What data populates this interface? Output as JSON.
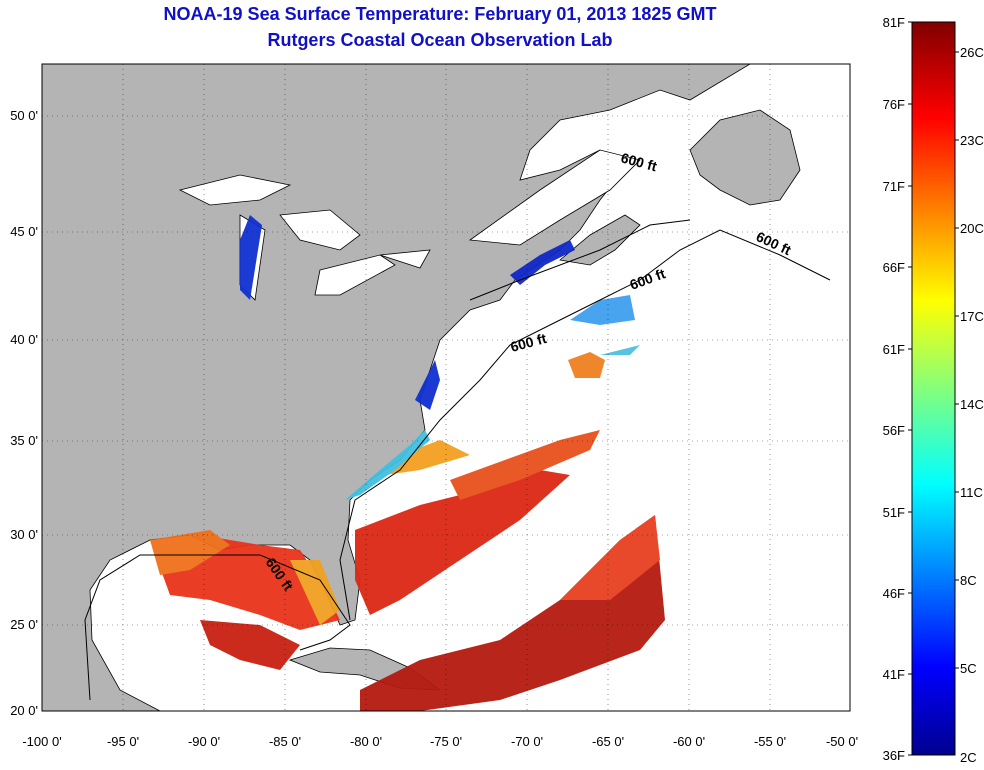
{
  "title": {
    "line1": "NOAA-19 Sea Surface Temperature:  February 01, 2013 1825 GMT",
    "line2": "Rutgers Coastal Ocean Observation Lab"
  },
  "map": {
    "lon_range": [
      -100,
      -50
    ],
    "lat_range": [
      20,
      52
    ],
    "x_ticks": [
      "-100 0'",
      "-95 0'",
      "-90 0'",
      "-85 0'",
      "-80 0'",
      "-75 0'",
      "-70 0'",
      "-65 0'",
      "-60 0'",
      "-55 0'",
      "-50 0'"
    ],
    "y_ticks": [
      "50 0'",
      "45 0'",
      "40 0'",
      "35 0'",
      "30 0'",
      "25 0'",
      "20 0'"
    ],
    "land_color": "#b4b4b4",
    "contour_labels": [
      "600 ft",
      "600 ft",
      "600 ft",
      "600 ft",
      "600 ft"
    ]
  },
  "colorbar": {
    "fahrenheit": [
      "81F",
      "76F",
      "71F",
      "66F",
      "61F",
      "56F",
      "51F",
      "46F",
      "41F",
      "36F"
    ],
    "celsius": [
      "26C",
      "23C",
      "20C",
      "17C",
      "14C",
      "11C",
      "8C",
      "5C",
      "2C"
    ]
  }
}
